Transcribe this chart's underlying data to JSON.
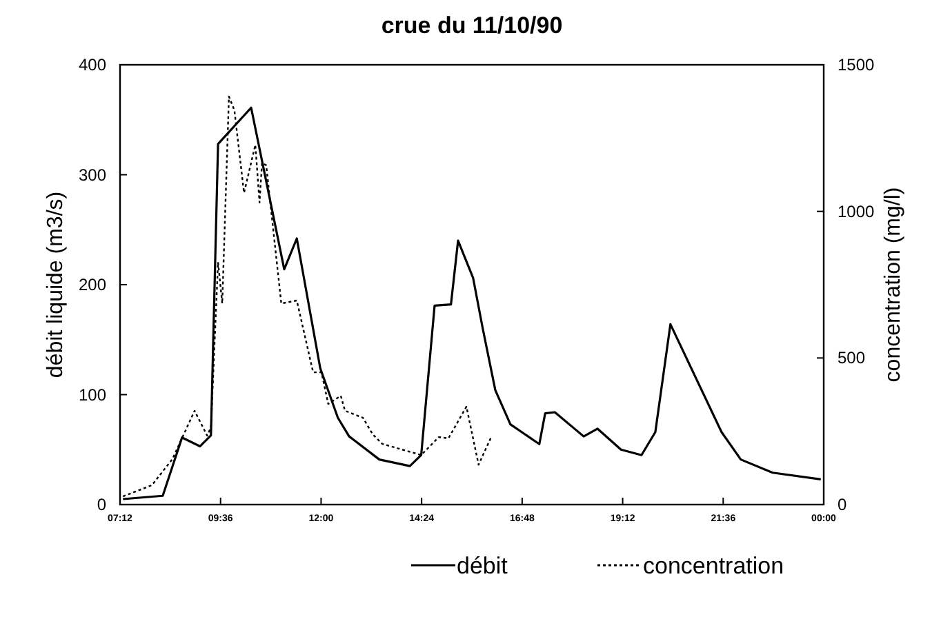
{
  "chart_data": {
    "type": "line",
    "title": "crue du 11/10/90",
    "ylabel": "débit liquide (m3/s)",
    "y2label": "concentration (mg/l)",
    "xlim": [
      7.2,
      24
    ],
    "xticks": [
      {
        "value": 7.2,
        "label": "07:12"
      },
      {
        "value": 9.6,
        "label": "09:36"
      },
      {
        "value": 12,
        "label": "12:00"
      },
      {
        "value": 14.4,
        "label": "14:24"
      },
      {
        "value": 16.8,
        "label": "16:48"
      },
      {
        "value": 19.2,
        "label": "19:12"
      },
      {
        "value": 21.6,
        "label": "21:36"
      },
      {
        "value": 24,
        "label": "00:00"
      }
    ],
    "ylim": [
      0,
      400
    ],
    "yticks": [
      0,
      100,
      200,
      300,
      400
    ],
    "y2lim": [
      0,
      1500
    ],
    "y2ticks": [
      0,
      500,
      1000,
      1500
    ],
    "grid": false,
    "legend": "bottom",
    "marker": "none",
    "series": [
      {
        "name": "débit",
        "color": "#000000",
        "line_style": "solid",
        "x": [
          7.27,
          8.22,
          8.68,
          9.11,
          9.37,
          9.54,
          10.33,
          11.12,
          11.42,
          11.98,
          12.4,
          12.67,
          13.39,
          14.12,
          14.39,
          14.71,
          15.1,
          15.27,
          15.63,
          15.86,
          16.16,
          16.52,
          17.21,
          17.35,
          17.58,
          18.27,
          18.6,
          19.16,
          19.65,
          19.98,
          20.34,
          21.56,
          22.02,
          22.78,
          23.93
        ],
        "values": [
          5,
          8,
          61,
          53,
          63,
          328,
          361,
          214,
          242,
          124,
          79,
          62,
          41,
          35,
          45,
          181,
          182,
          240,
          206,
          160,
          104,
          73,
          55,
          83,
          84,
          62,
          69,
          50,
          45,
          66,
          164,
          66,
          41,
          29,
          23
        ]
      },
      {
        "name": "concentration",
        "color": "#000000",
        "line_style": "dotted",
        "axis": "y2",
        "x": [
          7.27,
          7.96,
          8.45,
          8.98,
          9.28,
          9.37,
          9.54,
          9.64,
          9.8,
          9.93,
          10.16,
          10.43,
          10.53,
          10.59,
          10.69,
          11.05,
          11.42,
          11.81,
          12.01,
          12.17,
          12.47,
          12.57,
          13.0,
          13.23,
          13.46,
          14.39,
          14.81,
          15.04,
          15.47,
          15.76,
          16.06
        ],
        "values": [
          28,
          66,
          155,
          320,
          235,
          263,
          827,
          686,
          1392,
          1345,
          1063,
          1227,
          1030,
          1166,
          1157,
          686,
          696,
          451,
          451,
          343,
          371,
          320,
          296,
          240,
          207,
          169,
          230,
          226,
          334,
          136,
          230
        ]
      }
    ]
  }
}
